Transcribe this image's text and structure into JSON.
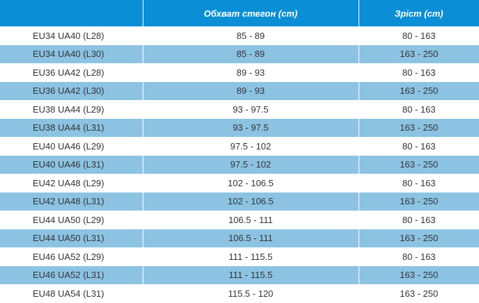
{
  "table": {
    "header": [
      "Обхват стегон (cm)",
      "Зріст (cm)"
    ],
    "rows": [
      [
        "EU34 UA40 (L28)",
        "85 - 89",
        "80 - 163"
      ],
      [
        "EU34 UA40 (L30)",
        "85 - 89",
        "163 - 250"
      ],
      [
        "EU36 UA42 (L28)",
        "89 - 93",
        "80 - 163"
      ],
      [
        "EU36 UA42 (L30)",
        "89 - 93",
        "163 - 250"
      ],
      [
        "EU38 UA44 (L29)",
        "93 - 97.5",
        "80 - 163"
      ],
      [
        "EU38 UA44 (L31)",
        "93 - 97.5",
        "163 - 250"
      ],
      [
        "EU40 UA46 (L29)",
        "97.5 - 102",
        "80 - 163"
      ],
      [
        "EU40 UA46 (L31)",
        "97.5 - 102",
        "163 - 250"
      ],
      [
        "EU42 UA48 (L29)",
        "102 - 106.5",
        "80 - 163"
      ],
      [
        "EU42 UA48 (L31)",
        "102 - 106.5",
        "163 - 250"
      ],
      [
        "EU44 UA50 (L29)",
        "106.5 - 111",
        "80 - 163"
      ],
      [
        "EU44 UA50 (L31)",
        "106.5 - 111",
        "163 - 250"
      ],
      [
        "EU46 UA52 (L29)",
        "111 - 115.5",
        "80 - 163"
      ],
      [
        "EU46 UA52 (L31)",
        "111 - 115.5",
        "163 - 250"
      ],
      [
        "EU48 UA54 (L31)",
        "115.5 - 120",
        "163 - 250"
      ]
    ]
  }
}
